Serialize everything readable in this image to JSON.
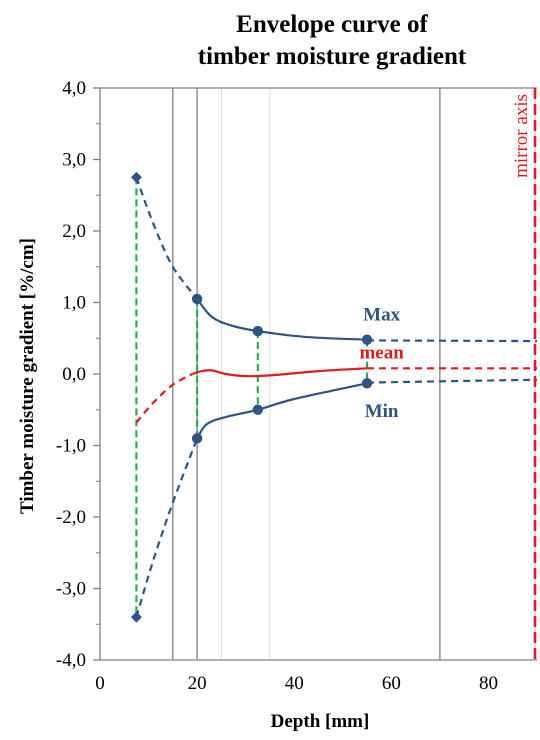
{
  "chart_data": {
    "type": "line",
    "title": [
      "Envelope curve of",
      "timber moisture gradient"
    ],
    "xlabel": "Depth [mm]",
    "ylabel": "Timber moisture gradient [%/cm]",
    "xlim": [
      0,
      90
    ],
    "ylim": [
      -4,
      4
    ],
    "x_ticks": [
      0,
      20,
      40,
      60,
      80
    ],
    "x_tick_labels": [
      "0",
      "20",
      "40",
      "60",
      "80"
    ],
    "y_ticks": [
      4,
      3,
      2,
      1,
      0,
      -1,
      -2,
      -3,
      -4
    ],
    "y_tick_labels": [
      "4,0",
      "3,0",
      "2,0",
      "1,0",
      "0,0",
      "-1,0",
      "-2,0",
      "-3,0",
      "-4,0"
    ],
    "grid": {
      "major_x": [
        15,
        20,
        70
      ],
      "minor_x": [
        25,
        35
      ],
      "y_major": false
    },
    "series": [
      {
        "name": "Max",
        "color": "#2e5384",
        "points": [
          [
            7.5,
            2.75
          ],
          [
            20,
            1.05
          ],
          [
            32.5,
            0.6
          ],
          [
            55,
            0.48
          ]
        ],
        "dashed_segments": [
          [
            [
              7.5,
              2.75
            ],
            [
              11,
              2.1
            ],
            [
              15,
              1.5
            ],
            [
              20,
              1.05
            ]
          ],
          [
            [
              55,
              0.47
            ],
            [
              90,
              0.46
            ]
          ]
        ],
        "solid_segments": [
          [
            [
              20,
              1.05
            ],
            [
              23,
              0.8
            ],
            [
              27,
              0.68
            ],
            [
              32.5,
              0.6
            ],
            [
              42,
              0.52
            ],
            [
              55,
              0.48
            ]
          ]
        ]
      },
      {
        "name": "Min",
        "color": "#2e5384",
        "points": [
          [
            7.5,
            -3.4
          ],
          [
            20,
            -0.9
          ],
          [
            32.5,
            -0.5
          ],
          [
            55,
            -0.13
          ]
        ],
        "dashed_segments": [
          [
            [
              7.5,
              -3.4
            ],
            [
              11,
              -2.6
            ],
            [
              15,
              -1.8
            ],
            [
              20,
              -0.9
            ]
          ],
          [
            [
              55,
              -0.12
            ],
            [
              90,
              -0.08
            ]
          ]
        ],
        "solid_segments": [
          [
            [
              20,
              -0.9
            ],
            [
              22,
              -0.7
            ],
            [
              26,
              -0.6
            ],
            [
              32.5,
              -0.5
            ],
            [
              40,
              -0.35
            ],
            [
              55,
              -0.13
            ]
          ]
        ]
      },
      {
        "name": "mean",
        "color": "#e31a1c",
        "points": [],
        "dashed_segments": [
          [
            [
              7.5,
              -0.68
            ],
            [
              11,
              -0.4
            ],
            [
              15,
              -0.15
            ],
            [
              19,
              0.0
            ]
          ],
          [
            [
              55,
              0.08
            ],
            [
              90,
              0.08
            ]
          ]
        ],
        "solid_segments": [
          [
            [
              19,
              0.0
            ],
            [
              21,
              0.04
            ],
            [
              23,
              0.05
            ],
            [
              26,
              0.0
            ],
            [
              30,
              -0.03
            ],
            [
              35,
              -0.02
            ],
            [
              45,
              0.04
            ],
            [
              55,
              0.08
            ]
          ]
        ]
      }
    ],
    "connectors": {
      "color": "#22b14c",
      "segments": [
        [
          [
            7.5,
            2.75
          ],
          [
            7.5,
            -3.4
          ]
        ],
        [
          [
            20,
            1.05
          ],
          [
            20,
            -0.9
          ]
        ],
        [
          [
            32.5,
            0.6
          ],
          [
            32.5,
            -0.5
          ]
        ],
        [
          [
            55,
            0.48
          ],
          [
            55,
            -0.13
          ]
        ]
      ]
    },
    "labels": [
      {
        "text": "Max",
        "color": "#2e5384",
        "x": 58,
        "y": 0.75
      },
      {
        "text": "mean",
        "color": "#e31a1c",
        "x": 58,
        "y": 0.22
      },
      {
        "text": "Min",
        "color": "#2e5384",
        "x": 58,
        "y": -0.6
      }
    ],
    "mirror_axis": {
      "x": 90,
      "label": "mirror axis",
      "color": "#e31a1c"
    }
  }
}
